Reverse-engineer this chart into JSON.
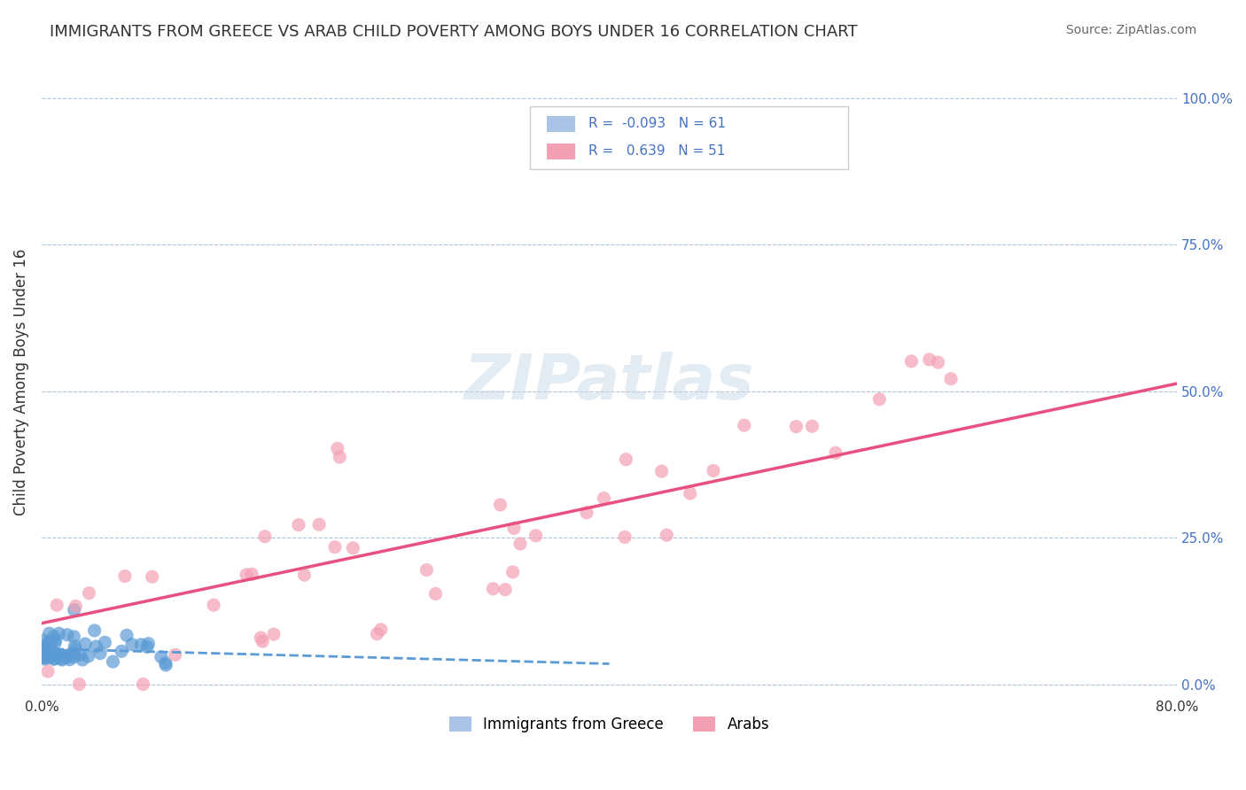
{
  "title": "IMMIGRANTS FROM GREECE VS ARAB CHILD POVERTY AMONG BOYS UNDER 16 CORRELATION CHART",
  "source": "Source: ZipAtlas.com",
  "xlabel_bottom": "",
  "ylabel": "Child Poverty Among Boys Under 16",
  "xlim": [
    0.0,
    0.8
  ],
  "ylim": [
    -0.02,
    1.05
  ],
  "x_ticks": [
    0.0,
    0.8
  ],
  "x_tick_labels": [
    "0.0%",
    "80.0%"
  ],
  "y_ticks_right": [
    0.0,
    0.25,
    0.5,
    0.75,
    1.0
  ],
  "y_tick_labels_right": [
    "0.0%",
    "25.0%",
    "50.0%",
    "75.0%",
    "100.0%"
  ],
  "legend_entries": [
    {
      "label": "R =  -0.093   N = 61",
      "color": "#aac4e8",
      "text_color": "#4472c4"
    },
    {
      "label": "R =   0.639   N = 51",
      "color": "#f4b8c8",
      "text_color": "#4472c4"
    }
  ],
  "greece_color": "#5b9bd5",
  "arab_color": "#f4a0b4",
  "greece_R": -0.093,
  "arab_R": 0.639,
  "greece_N": 61,
  "arab_N": 51,
  "background_color": "#ffffff",
  "watermark": "ZIPatlas",
  "watermark_color": "#c8d8e8"
}
